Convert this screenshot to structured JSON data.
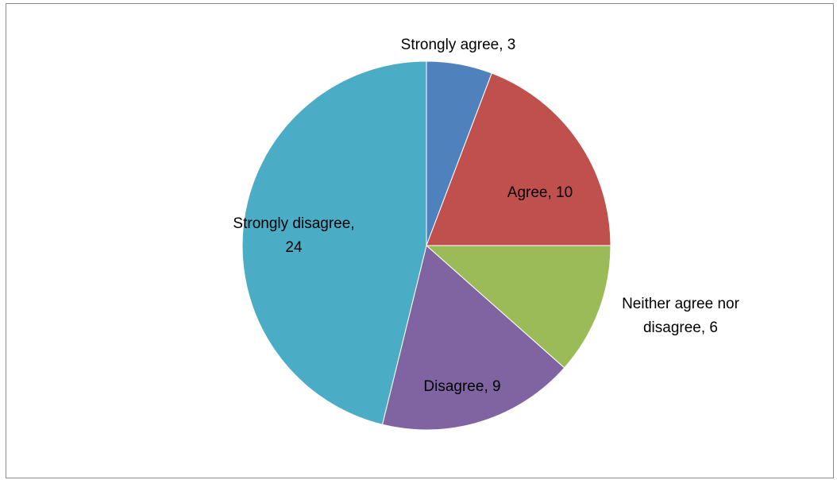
{
  "chart_data": {
    "type": "pie",
    "title": "",
    "start_angle_deg": 0,
    "direction": "clockwise",
    "legend": "none",
    "slices": [
      {
        "category": "Strongly agree",
        "value": 3,
        "color": "#4F81BD",
        "label_lines": [
          "Strongly agree, 3"
        ]
      },
      {
        "category": "Agree",
        "value": 10,
        "color": "#C0504D",
        "label_lines": [
          "Agree, 10"
        ]
      },
      {
        "category": "Neither agree nor disagree",
        "value": 6,
        "color": "#9BBB59",
        "label_lines": [
          "Neither agree nor",
          "disagree, 6"
        ]
      },
      {
        "category": "Disagree",
        "value": 9,
        "color": "#8064A2",
        "label_lines": [
          "Disagree, 9"
        ]
      },
      {
        "category": "Strongly disagree",
        "value": 24,
        "color": "#4BACC6",
        "label_lines": [
          "Strongly disagree,",
          "24"
        ]
      }
    ]
  }
}
